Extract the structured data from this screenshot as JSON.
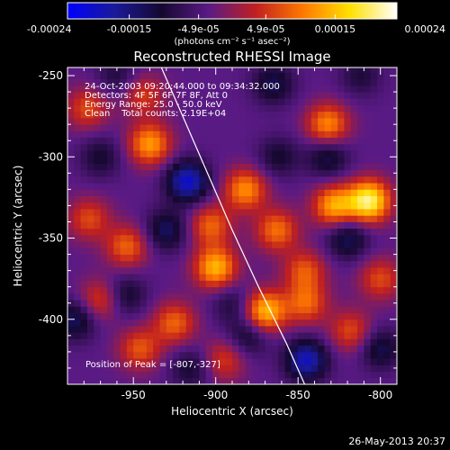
{
  "colorbar": {
    "tick_labels": [
      "-0.00024",
      "-0.00015",
      "-4.9e-05",
      "4.9e-05",
      "0.00015",
      "0.00024"
    ],
    "tick_values": [
      -0.00024,
      -0.00015,
      -4.9e-05,
      4.9e-05,
      0.00015,
      0.00024
    ],
    "range": [
      -0.00024,
      0.00024
    ],
    "unit_label": "(photons cm⁻² s⁻¹ asec⁻²)",
    "stops": [
      "#0000ff",
      "#1a1a9a",
      "#160830",
      "#5a1a85",
      "#c02020",
      "#ff7800",
      "#ffe000",
      "#ffffff"
    ]
  },
  "chart_data": {
    "type": "heatmap",
    "title": "Reconstructed RHESSI Image",
    "xlabel": "Heliocentric X (arcsec)",
    "ylabel": "Heliocentric Y (arcsec)",
    "xlim": [
      -990,
      -790
    ],
    "ylim": [
      -440,
      -245
    ],
    "x_ticks": [
      -950,
      -900,
      -850,
      -800
    ],
    "x_tick_labels": [
      "-950",
      "-900",
      "-850",
      "-800"
    ],
    "y_ticks": [
      -250,
      -300,
      -350,
      -400
    ],
    "y_tick_labels": [
      "-250",
      "-300",
      "-350",
      "-400"
    ],
    "annotations": [
      "24-Oct-2003 09:20:44.000 to 09:34:32.000",
      "Detectors: 4F 5F 6F 7F 8F, Att 0",
      "Energy Range: 25.0 - 50.0 keV",
      "Clean    Total counts: 2.19E+04"
    ],
    "peak_label": "Position of Peak = [-807,-327]",
    "peak": [
      -807,
      -327
    ],
    "limb_curve": [
      [
        -933,
        -245
      ],
      [
        -920,
        -275
      ],
      [
        -905,
        -310
      ],
      [
        -890,
        -345
      ],
      [
        -874,
        -380
      ],
      [
        -857,
        -415
      ],
      [
        -846,
        -440
      ]
    ],
    "limb_color": "#ffffff",
    "blobs": [
      {
        "x": -807,
        "y": -327,
        "v": 0.00024
      },
      {
        "x": -828,
        "y": -330,
        "v": 0.00017
      },
      {
        "x": -882,
        "y": -320,
        "v": 0.00015
      },
      {
        "x": -940,
        "y": -292,
        "v": 0.00016
      },
      {
        "x": -900,
        "y": -368,
        "v": 0.00018
      },
      {
        "x": -903,
        "y": -342,
        "v": 0.00012
      },
      {
        "x": -870,
        "y": -395,
        "v": 0.00019
      },
      {
        "x": -863,
        "y": -345,
        "v": 0.00013
      },
      {
        "x": -846,
        "y": -370,
        "v": 0.00011
      },
      {
        "x": -832,
        "y": -280,
        "v": 0.00015
      },
      {
        "x": -845,
        "y": -390,
        "v": 0.00012
      },
      {
        "x": -954,
        "y": -355,
        "v": 0.00012
      },
      {
        "x": -977,
        "y": -338,
        "v": 0.0001
      },
      {
        "x": -978,
        "y": -270,
        "v": 0.0001
      },
      {
        "x": -944,
        "y": -262,
        "v": 9e-05
      },
      {
        "x": -925,
        "y": -402,
        "v": 0.00012
      },
      {
        "x": -970,
        "y": -388,
        "v": 0.0001
      },
      {
        "x": -946,
        "y": -418,
        "v": 0.00011
      },
      {
        "x": -800,
        "y": -375,
        "v": 0.0001
      },
      {
        "x": -818,
        "y": -407,
        "v": 0.0001
      },
      {
        "x": -895,
        "y": -425,
        "v": 9e-05
      },
      {
        "x": -917,
        "y": -315,
        "v": -0.00017
      },
      {
        "x": -930,
        "y": -345,
        "v": -0.0001
      },
      {
        "x": -845,
        "y": -425,
        "v": -0.00016
      },
      {
        "x": -880,
        "y": -410,
        "v": -8e-05
      },
      {
        "x": -800,
        "y": -418,
        "v": -9e-05
      },
      {
        "x": -820,
        "y": -350,
        "v": -0.0001
      },
      {
        "x": -832,
        "y": -300,
        "v": -9e-05
      },
      {
        "x": -862,
        "y": -300,
        "v": -7e-05
      },
      {
        "x": -985,
        "y": -400,
        "v": -0.0001
      },
      {
        "x": -955,
        "y": -385,
        "v": -8e-05
      },
      {
        "x": -970,
        "y": -300,
        "v": -7e-05
      },
      {
        "x": -960,
        "y": -250,
        "v": -6e-05
      },
      {
        "x": -865,
        "y": -255,
        "v": -9e-05
      },
      {
        "x": -915,
        "y": -430,
        "v": -7e-05
      },
      {
        "x": -812,
        "y": -250,
        "v": -6e-05
      },
      {
        "x": -890,
        "y": -390,
        "v": -6e-05
      }
    ]
  },
  "footer": {
    "timestamp": "26-May-2013 20:37"
  }
}
